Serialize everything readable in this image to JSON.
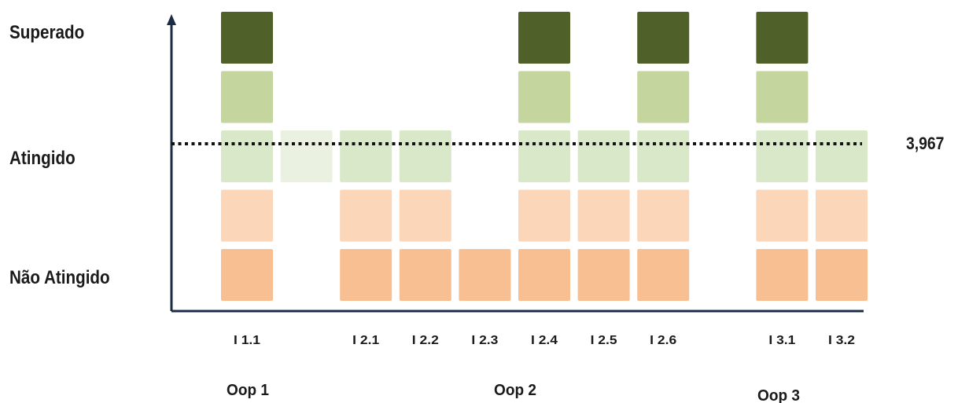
{
  "chart_data": {
    "type": "heatmap",
    "levels": [
      "Não Atingido",
      "",
      "Atingido",
      "",
      "Superado"
    ],
    "level_labels": [
      {
        "level": 1,
        "text": "Não Atingido"
      },
      {
        "level": 3,
        "text": "Atingido"
      },
      {
        "level": 5,
        "text": "Superado"
      }
    ],
    "categories": [
      "I 1.1",
      "",
      "I 2.1",
      "I 2.2",
      "I 2.3",
      "I 2.4",
      "I 2.5",
      "I 2.6",
      "",
      "I 3.1",
      "I 3.2"
    ],
    "values": [
      5,
      3,
      3,
      3,
      1,
      5,
      3,
      5,
      null,
      5,
      3
    ],
    "faded": [
      false,
      true,
      false,
      false,
      false,
      false,
      false,
      false,
      false,
      false,
      false
    ],
    "groups": [
      {
        "name": "Oop 1",
        "start": 0,
        "end": 0
      },
      {
        "name": "Oop 2",
        "start": 2,
        "end": 7
      },
      {
        "name": "Oop 3",
        "start": 9,
        "end": 10
      }
    ],
    "reference_line": {
      "value": 3.967,
      "label": "3,967",
      "style": "dotted"
    },
    "colors": {
      "level1": "#f8bf92",
      "level2": "#fbd6b9",
      "level3": "#d9e8c8",
      "level4": "#c4d69e",
      "level5": "#4f6128",
      "faded": "#ebf1e1",
      "axis": "#1b2d46",
      "reference": "#111111"
    }
  }
}
